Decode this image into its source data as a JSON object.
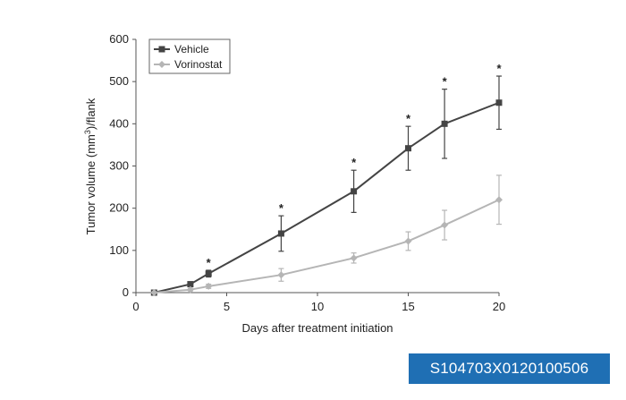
{
  "chart_data": {
    "type": "line",
    "xlabel": "Days after treatment initiation",
    "ylabel_prefix": "Tumor volume (mm",
    "ylabel_sup": "3",
    "ylabel_suffix": ")/flank",
    "xlim": [
      0,
      20
    ],
    "ylim": [
      0,
      600
    ],
    "x_ticks": [
      0,
      5,
      10,
      15,
      20
    ],
    "y_ticks": [
      0,
      100,
      200,
      300,
      400,
      500,
      600
    ],
    "grid": false,
    "legend_position": "top-left",
    "series": [
      {
        "name": "Vehicle",
        "color": "#444444",
        "marker": "square",
        "x": [
          1,
          3,
          4,
          8,
          12,
          15,
          17,
          20
        ],
        "y": [
          0,
          20,
          45,
          140,
          240,
          342,
          400,
          450
        ],
        "err": [
          0,
          5,
          8,
          42,
          50,
          52,
          82,
          63
        ]
      },
      {
        "name": "Vorinostat",
        "color": "#b5b5b5",
        "marker": "diamond",
        "x": [
          1,
          3,
          4,
          8,
          12,
          15,
          17,
          20
        ],
        "y": [
          0,
          7,
          15,
          42,
          82,
          122,
          160,
          220
        ],
        "err": [
          0,
          3,
          5,
          15,
          12,
          22,
          35,
          58
        ]
      }
    ],
    "significance": {
      "label": "*",
      "x": [
        4,
        8,
        12,
        15,
        17,
        20
      ]
    }
  },
  "image_id": "S104703X0120100506"
}
